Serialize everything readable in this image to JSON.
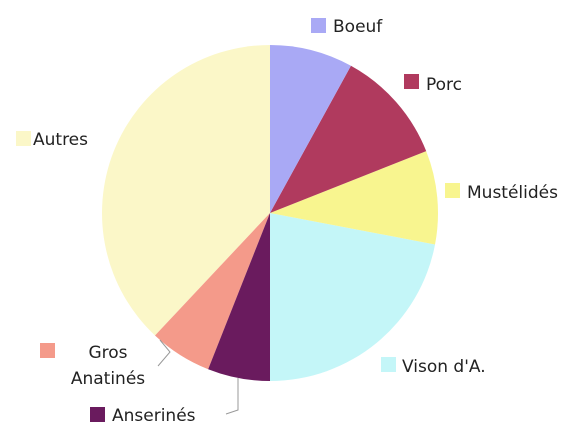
{
  "chart_data": {
    "type": "pie",
    "categories": [
      "Boeuf",
      "Porc",
      "Mustélidés",
      "Vison d'A.",
      "Anserinés",
      "Gros Anatinés",
      "Autres"
    ],
    "values": [
      8,
      11,
      9,
      22,
      6,
      6,
      38
    ],
    "colors": [
      "#a9a9f5",
      "#b03a5e",
      "#f8f58f",
      "#c4f6f8",
      "#6a1b5e",
      "#f49a8a",
      "#fbf7c8"
    ]
  }
}
